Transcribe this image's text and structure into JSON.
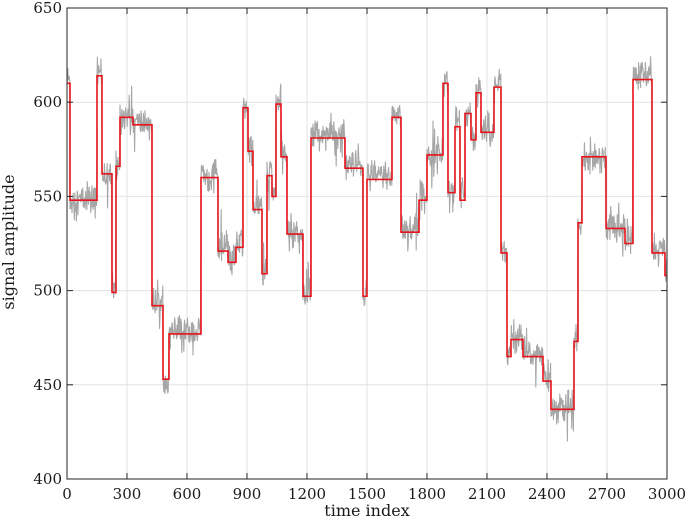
{
  "chart_data": {
    "type": "line",
    "xlabel": "time index",
    "ylabel": "signal amplitude",
    "xlim": [
      0,
      3000
    ],
    "ylim": [
      400,
      650
    ],
    "xticks": [
      0,
      300,
      600,
      900,
      1200,
      1500,
      1800,
      2100,
      2400,
      2700,
      3000
    ],
    "yticks": [
      400,
      450,
      500,
      550,
      600,
      650
    ],
    "grid": true,
    "colors": {
      "raw": "#a6a6a6",
      "fit": "#e8141b"
    },
    "series": [
      {
        "style": "noisy-raw",
        "segments": [
          [
            0,
            15,
            612
          ],
          [
            15,
            150,
            548
          ],
          [
            150,
            175,
            616
          ],
          [
            175,
            225,
            562
          ],
          [
            225,
            245,
            500
          ],
          [
            245,
            265,
            566
          ],
          [
            265,
            330,
            593
          ],
          [
            330,
            425,
            589
          ],
          [
            425,
            480,
            493
          ],
          [
            480,
            510,
            455
          ],
          [
            510,
            670,
            478
          ],
          [
            670,
            755,
            561
          ],
          [
            755,
            805,
            522
          ],
          [
            805,
            845,
            516
          ],
          [
            845,
            880,
            525
          ],
          [
            880,
            905,
            597
          ],
          [
            905,
            930,
            575
          ],
          [
            930,
            975,
            545
          ],
          [
            975,
            1000,
            510
          ],
          [
            1000,
            1025,
            562
          ],
          [
            1025,
            1045,
            552
          ],
          [
            1045,
            1070,
            601
          ],
          [
            1070,
            1100,
            573
          ],
          [
            1100,
            1180,
            531
          ],
          [
            1180,
            1220,
            500
          ],
          [
            1220,
            1390,
            583
          ],
          [
            1390,
            1480,
            566
          ],
          [
            1480,
            1500,
            497
          ],
          [
            1500,
            1625,
            561
          ],
          [
            1625,
            1670,
            594
          ],
          [
            1670,
            1760,
            533
          ],
          [
            1760,
            1800,
            550
          ],
          [
            1800,
            1880,
            573
          ],
          [
            1880,
            1905,
            611
          ],
          [
            1905,
            1940,
            554
          ],
          [
            1940,
            1965,
            589
          ],
          [
            1965,
            1990,
            550
          ],
          [
            1990,
            2020,
            595
          ],
          [
            2020,
            2045,
            582
          ],
          [
            2045,
            2070,
            608
          ],
          [
            2070,
            2135,
            586
          ],
          [
            2135,
            2170,
            609
          ],
          [
            2170,
            2200,
            523
          ],
          [
            2200,
            2220,
            466
          ],
          [
            2220,
            2280,
            476
          ],
          [
            2280,
            2380,
            466
          ],
          [
            2380,
            2420,
            454
          ],
          [
            2420,
            2535,
            438
          ],
          [
            2535,
            2555,
            475
          ],
          [
            2555,
            2575,
            537
          ],
          [
            2575,
            2695,
            571
          ],
          [
            2695,
            2790,
            534
          ],
          [
            2790,
            2830,
            527
          ],
          [
            2830,
            2925,
            614
          ],
          [
            2925,
            2990,
            522
          ],
          [
            2990,
            3000,
            509
          ]
        ]
      },
      {
        "style": "step-fit",
        "segments": [
          [
            0,
            15,
            610
          ],
          [
            15,
            150,
            548
          ],
          [
            150,
            175,
            614
          ],
          [
            175,
            225,
            562
          ],
          [
            225,
            245,
            499
          ],
          [
            245,
            265,
            566
          ],
          [
            265,
            330,
            592
          ],
          [
            330,
            425,
            588
          ],
          [
            425,
            480,
            492
          ],
          [
            480,
            510,
            453
          ],
          [
            510,
            670,
            477
          ],
          [
            670,
            755,
            560
          ],
          [
            755,
            805,
            521
          ],
          [
            805,
            845,
            515
          ],
          [
            845,
            880,
            523
          ],
          [
            880,
            905,
            597
          ],
          [
            905,
            930,
            574
          ],
          [
            930,
            975,
            543
          ],
          [
            975,
            1000,
            509
          ],
          [
            1000,
            1025,
            561
          ],
          [
            1025,
            1045,
            550
          ],
          [
            1045,
            1070,
            599
          ],
          [
            1070,
            1100,
            571
          ],
          [
            1100,
            1180,
            530
          ],
          [
            1180,
            1220,
            497
          ],
          [
            1220,
            1390,
            581
          ],
          [
            1390,
            1480,
            565
          ],
          [
            1480,
            1500,
            497
          ],
          [
            1500,
            1625,
            559
          ],
          [
            1625,
            1670,
            592
          ],
          [
            1670,
            1760,
            531
          ],
          [
            1760,
            1800,
            548
          ],
          [
            1800,
            1880,
            572
          ],
          [
            1880,
            1905,
            610
          ],
          [
            1905,
            1940,
            552
          ],
          [
            1940,
            1965,
            587
          ],
          [
            1965,
            1990,
            548
          ],
          [
            1990,
            2020,
            594
          ],
          [
            2020,
            2045,
            580
          ],
          [
            2045,
            2070,
            605
          ],
          [
            2070,
            2135,
            584
          ],
          [
            2135,
            2170,
            608
          ],
          [
            2170,
            2200,
            520
          ],
          [
            2200,
            2220,
            465
          ],
          [
            2220,
            2280,
            474
          ],
          [
            2280,
            2380,
            465
          ],
          [
            2380,
            2420,
            452
          ],
          [
            2420,
            2535,
            437
          ],
          [
            2535,
            2555,
            473
          ],
          [
            2555,
            2575,
            536
          ],
          [
            2575,
            2695,
            571
          ],
          [
            2695,
            2790,
            533
          ],
          [
            2790,
            2830,
            525
          ],
          [
            2830,
            2925,
            612
          ],
          [
            2925,
            2990,
            520
          ],
          [
            2990,
            3000,
            508
          ]
        ]
      }
    ]
  }
}
